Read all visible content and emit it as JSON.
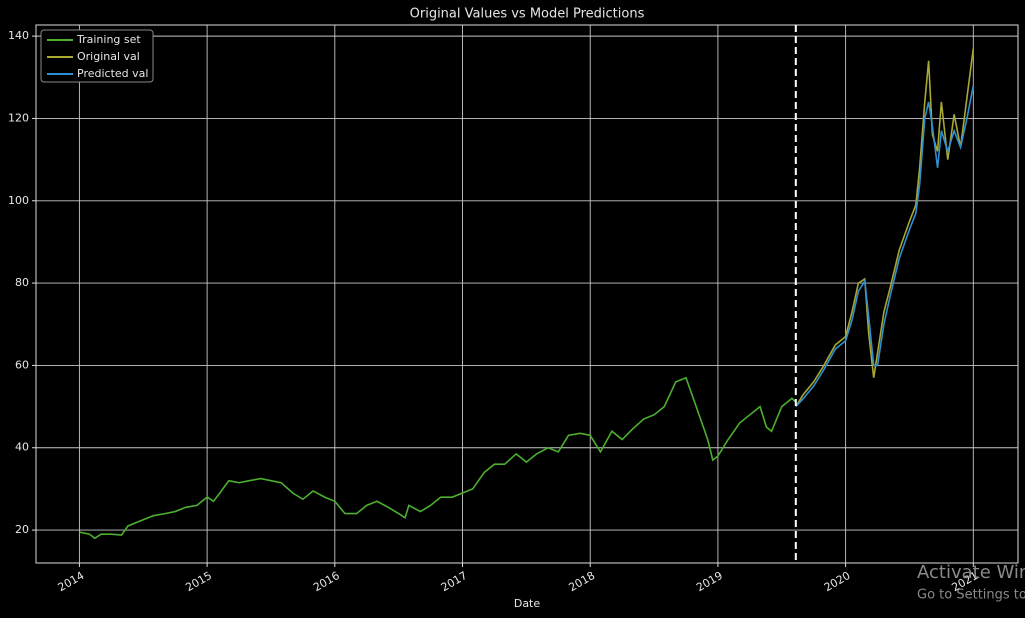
{
  "chart_data": {
    "type": "line",
    "title": "Original Values vs Model Predictions",
    "xlabel": "Date",
    "xlim": [
      2013.66,
      2021.35
    ],
    "ylim": [
      12,
      142.7
    ],
    "xticks": [
      2014,
      2015,
      2016,
      2017,
      2018,
      2019,
      2020,
      2021
    ],
    "yticks": [
      20,
      40,
      60,
      80,
      100,
      120,
      140
    ],
    "grid": true,
    "legend": "upper left",
    "vline": {
      "x": 2019.61,
      "color": "#ffffff"
    },
    "series": [
      {
        "name": "Training set",
        "color": "#4caf2e",
        "x": [
          2014.0,
          2014.08,
          2014.12,
          2014.17,
          2014.25,
          2014.33,
          2014.38,
          2014.5,
          2014.58,
          2014.67,
          2014.75,
          2014.83,
          2014.92,
          2015.0,
          2015.05,
          2015.1,
          2015.17,
          2015.25,
          2015.33,
          2015.42,
          2015.5,
          2015.58,
          2015.67,
          2015.75,
          2015.83,
          2015.92,
          2016.0,
          2016.08,
          2016.17,
          2016.25,
          2016.33,
          2016.42,
          2016.5,
          2016.55,
          2016.58,
          2016.67,
          2016.75,
          2016.83,
          2016.92,
          2017.0,
          2017.08,
          2017.17,
          2017.25,
          2017.33,
          2017.42,
          2017.5,
          2017.58,
          2017.67,
          2017.75,
          2017.83,
          2017.92,
          2018.0,
          2018.08,
          2018.17,
          2018.25,
          2018.33,
          2018.42,
          2018.5,
          2018.58,
          2018.67,
          2018.75,
          2018.83,
          2018.92,
          2018.96,
          2019.0,
          2019.08,
          2019.17,
          2019.25,
          2019.33,
          2019.38,
          2019.42,
          2019.5,
          2019.58,
          2019.61
        ],
        "values": [
          19.5,
          19,
          18,
          19,
          19,
          18.8,
          21,
          22.5,
          23.5,
          24,
          24.5,
          25.5,
          26,
          28,
          27,
          29,
          32,
          31.5,
          32,
          32.5,
          32,
          31.5,
          29,
          27.5,
          29.5,
          28,
          27,
          24,
          24,
          26,
          27,
          25.5,
          24,
          23,
          26,
          24.5,
          26,
          28,
          28,
          29,
          30,
          34,
          36,
          36,
          38.5,
          36.5,
          38.5,
          40,
          39,
          43,
          43.5,
          43,
          39,
          44,
          42,
          44.5,
          47,
          48,
          50,
          56,
          57,
          50,
          42,
          37,
          38,
          42,
          46,
          48,
          50,
          45,
          44,
          50,
          52,
          51
        ]
      },
      {
        "name": "Original val",
        "color": "#a8a832",
        "x": [
          2019.61,
          2019.67,
          2019.75,
          2019.83,
          2019.92,
          2020.0,
          2020.05,
          2020.1,
          2020.15,
          2020.18,
          2020.22,
          2020.25,
          2020.3,
          2020.35,
          2020.42,
          2020.5,
          2020.55,
          2020.58,
          2020.62,
          2020.65,
          2020.68,
          2020.72,
          2020.75,
          2020.8,
          2020.85,
          2020.9,
          2020.95,
          2021.0
        ],
        "values": [
          50,
          53,
          56,
          60,
          65,
          67,
          73,
          80,
          81,
          68,
          57,
          63,
          73,
          79,
          88,
          95,
          99,
          108,
          124,
          134,
          116,
          112,
          124,
          110,
          121,
          113,
          125,
          137
        ]
      },
      {
        "name": "Predicted val",
        "color": "#2f8fd0",
        "x": [
          2019.61,
          2019.67,
          2019.75,
          2019.83,
          2019.92,
          2020.0,
          2020.05,
          2020.1,
          2020.15,
          2020.18,
          2020.22,
          2020.25,
          2020.3,
          2020.35,
          2020.42,
          2020.5,
          2020.55,
          2020.58,
          2020.62,
          2020.65,
          2020.68,
          2020.72,
          2020.75,
          2020.8,
          2020.85,
          2020.9,
          2020.95,
          2021.0
        ],
        "values": [
          50,
          52,
          55,
          59,
          64,
          66,
          71,
          78,
          80.5,
          72,
          60,
          60,
          70,
          77,
          86,
          93,
          97,
          104,
          120,
          124,
          118,
          108,
          117,
          112,
          117,
          113,
          120,
          128
        ]
      }
    ]
  },
  "watermark": {
    "title": "Activate Windows",
    "subtitle": "Go to Settings to activate Windows."
  }
}
